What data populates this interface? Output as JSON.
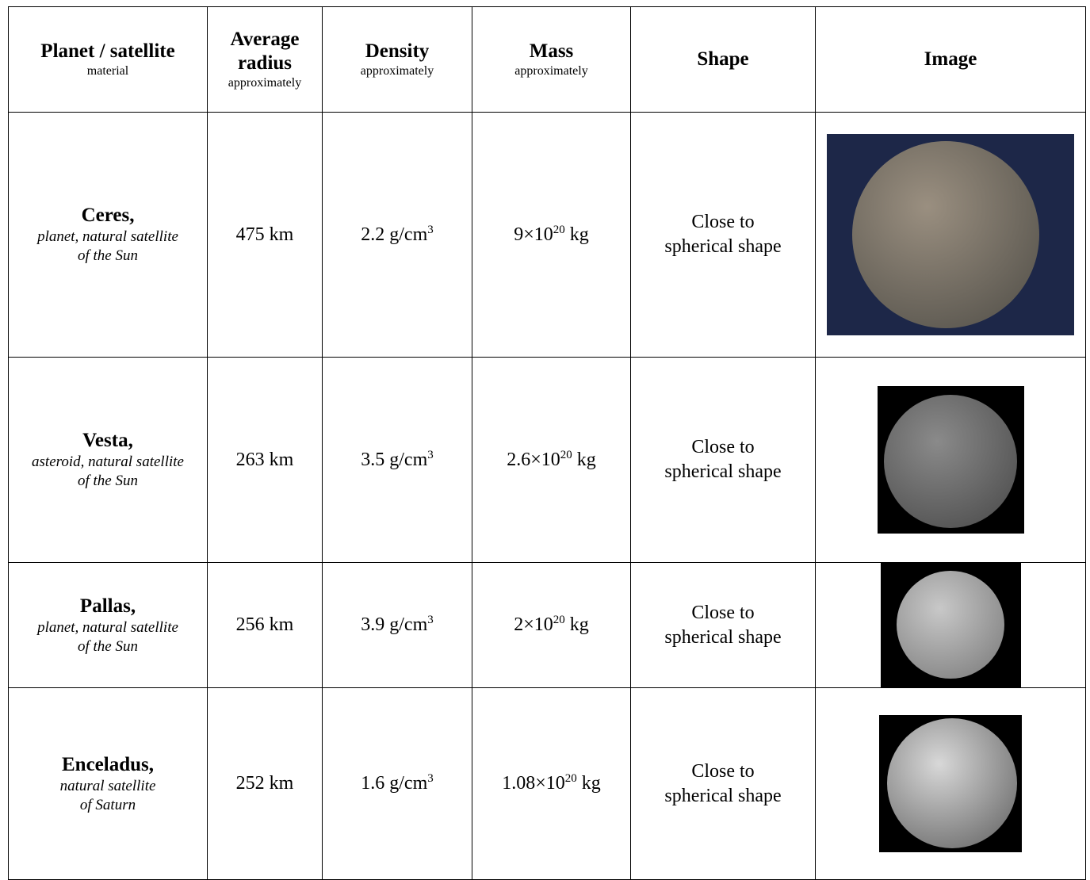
{
  "table": {
    "header": [
      {
        "title": "Planet / satellite",
        "note": "material"
      },
      {
        "title": "Average radius",
        "note": "approximately"
      },
      {
        "title": "Density",
        "note": "approximately"
      },
      {
        "title": "Mass",
        "note": "approximately"
      },
      {
        "title": "Shape"
      },
      {
        "title": "Image"
      }
    ],
    "rows": [
      {
        "name": "Ceres",
        "description": [
          "planet, natural satellite",
          "of the Sun"
        ],
        "radius": "475 km",
        "density": {
          "value": "2.2 g/cm",
          "exponent": "3"
        },
        "mass": {
          "value": "9×10",
          "exponent": "20",
          "unit": "kg"
        },
        "shape": [
          "Close to",
          "spherical shape"
        ]
      },
      {
        "name": "Vesta",
        "description": [
          "asteroid, natural satellite",
          "of the Sun"
        ],
        "radius": "263 km",
        "density": {
          "value": "3.5 g/cm",
          "exponent": "3"
        },
        "mass": {
          "value": "2.6×10",
          "exponent": "20",
          "unit": "kg"
        },
        "shape": [
          "Close to",
          "spherical shape"
        ]
      },
      {
        "name": "Pallas",
        "description": [
          "planet, natural satellite",
          "of the Sun"
        ],
        "radius": "256 km",
        "density": {
          "value": "3.9 g/cm",
          "exponent": "3"
        },
        "mass": {
          "value": "2×10",
          "exponent": "20",
          "unit": "kg"
        },
        "shape": [
          "Close to",
          "spherical shape"
        ]
      },
      {
        "name": "Enceladus",
        "description": [
          "natural satellite",
          "of Saturn"
        ],
        "radius": "252 km",
        "density": {
          "value": "1.6 g/cm",
          "exponent": "3"
        },
        "mass": {
          "value": "1.08×10",
          "exponent": "20",
          "unit": "kg"
        },
        "shape": [
          "Close to",
          "spherical shape"
        ]
      }
    ]
  }
}
